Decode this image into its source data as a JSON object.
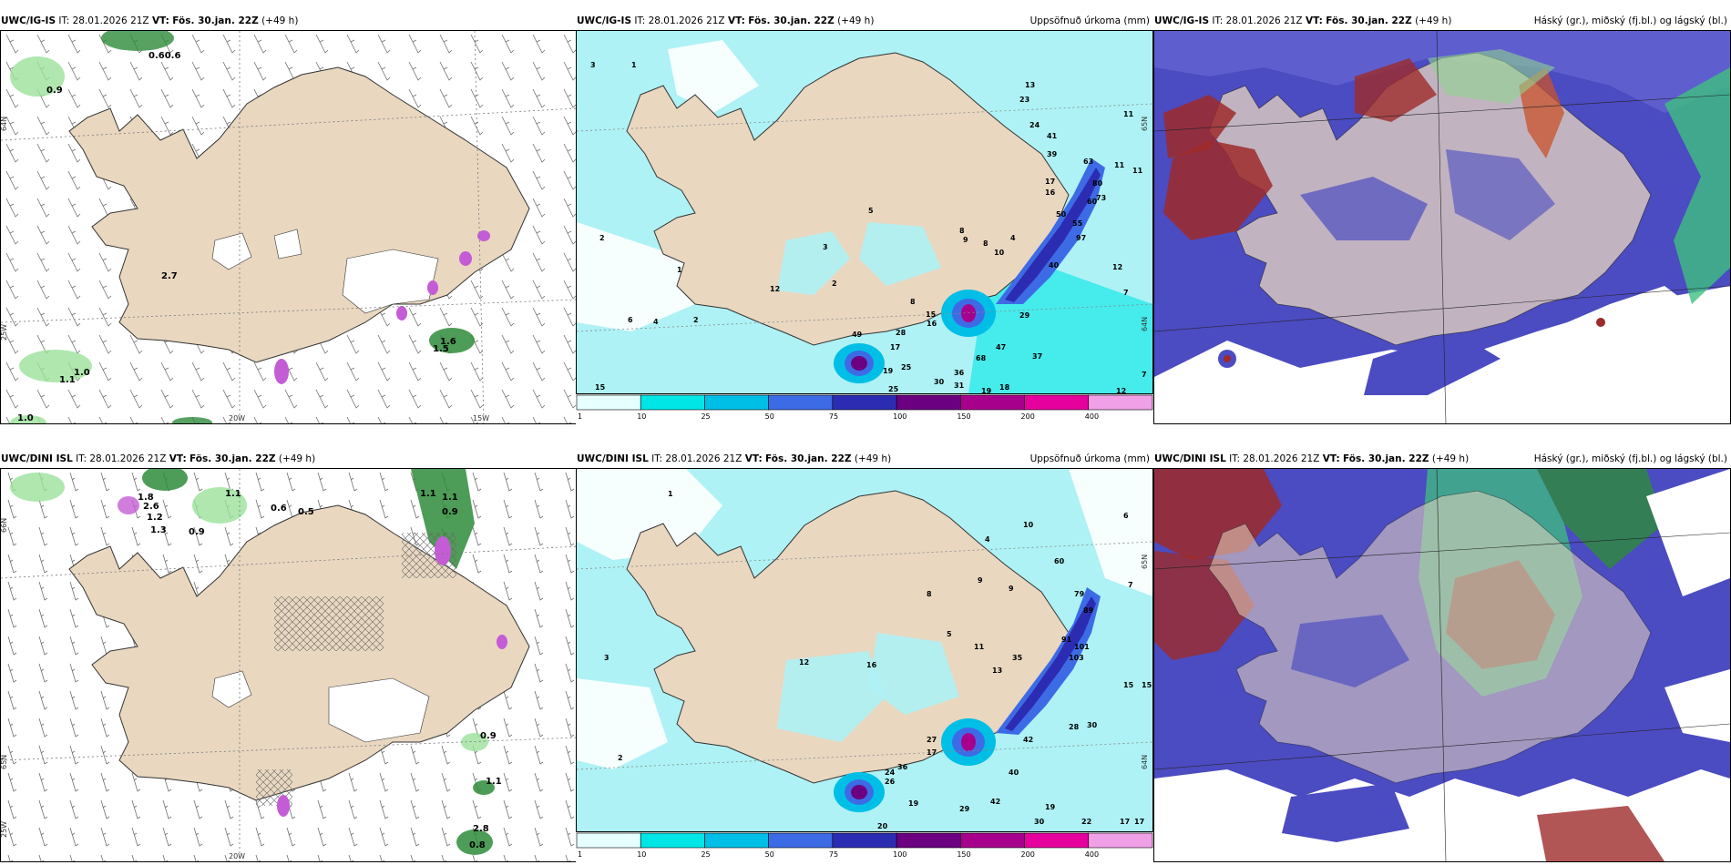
{
  "panels": [
    {
      "id": "igis-wind",
      "model": "UWC/IG-IS",
      "it_label": "IT:",
      "it_value": "28.01.2026 21Z",
      "vt_label": "VT:",
      "vt_value": "Fös. 30.jan. 22Z",
      "lead": "(+49 h)",
      "right_title": "",
      "grid_labels": [
        "20W",
        "15W",
        "25W",
        "65N",
        "64N",
        "66N"
      ],
      "values": [
        "0.60.6",
        "0.9",
        "2.7",
        "1.0",
        "1.1",
        "1.0",
        "1.6",
        "1.5"
      ]
    },
    {
      "id": "igis-precip",
      "model": "UWC/IG-IS",
      "it_label": "IT:",
      "it_value": "28.01.2026 21Z",
      "vt_label": "VT:",
      "vt_value": "Fös. 30.jan. 22Z",
      "lead": "(+49 h)",
      "right_title": "Uppsöfnuð úrkoma (mm)",
      "grid_labels": [
        "65N",
        "64N"
      ],
      "values": [
        "1",
        "3",
        "2",
        "1",
        "12",
        "2",
        "49",
        "28",
        "17",
        "19",
        "25",
        "25",
        "15",
        "8",
        "16",
        "29",
        "47",
        "68",
        "37",
        "36",
        "30",
        "31",
        "18",
        "19",
        "15",
        "12",
        "7",
        "7",
        "12",
        "11",
        "11",
        "40",
        "50",
        "55",
        "60",
        "63",
        "80",
        "73",
        "97",
        "4",
        "13",
        "23",
        "24",
        "41",
        "39",
        "17",
        "16",
        "8",
        "9",
        "10",
        "8",
        "5",
        "3",
        "6",
        "4",
        "2",
        "11"
      ]
    },
    {
      "id": "igis-cloud",
      "model": "UWC/IG-IS",
      "it_label": "IT:",
      "it_value": "28.01.2026 21Z",
      "vt_label": "VT:",
      "vt_value": "Fös. 30.jan. 22Z",
      "lead": "(+49 h)",
      "right_title": "Háský (gr.), miðský (fj.bl.) og lágský (bl.)",
      "grid_labels": [],
      "values": []
    },
    {
      "id": "dini-wind",
      "model": "UWC/DINI ISL",
      "it_label": "IT:",
      "it_value": "28.01.2026 21Z",
      "vt_label": "VT:",
      "vt_value": "Fös. 30.jan. 22Z",
      "lead": "(+49 h)",
      "right_title": "",
      "grid_labels": [
        "20W",
        "25W",
        "65N",
        "64N",
        "66N"
      ],
      "values": [
        "0.6",
        "0.5",
        "0.9",
        "1.1",
        "1.8",
        "2.6",
        "1.2",
        "1.3",
        "0.9",
        "1.1",
        "1.1",
        "0.9",
        "1.1",
        "2.8",
        "0.8"
      ]
    },
    {
      "id": "dini-precip",
      "model": "UWC/DINI ISL",
      "it_label": "IT:",
      "it_value": "28.01.2026 21Z",
      "vt_label": "VT:",
      "vt_value": "Fös. 30.jan. 22Z",
      "lead": "(+49 h)",
      "right_title": "Uppsöfnuð úrkoma (mm)",
      "grid_labels": [
        "65N",
        "64N"
      ],
      "values": [
        "1",
        "3",
        "2",
        "16",
        "12",
        "27",
        "17",
        "24",
        "36",
        "26",
        "42",
        "40",
        "42",
        "19",
        "29",
        "30",
        "22",
        "17",
        "17",
        "60",
        "79",
        "89",
        "91",
        "101",
        "103",
        "35",
        "13",
        "15",
        "15",
        "28",
        "30",
        "7",
        "6",
        "9",
        "10",
        "11",
        "9",
        "4",
        "5",
        "8",
        "20",
        "19"
      ]
    },
    {
      "id": "dini-cloud",
      "model": "UWC/DINI ISL",
      "it_label": "IT:",
      "it_value": "28.01.2026 21Z",
      "vt_label": "VT:",
      "vt_value": "Fös. 30.jan. 22Z",
      "lead": "(+49 h)",
      "right_title": "Háský (gr.), miðský (fj.bl.) og lágský (bl.)",
      "grid_labels": [],
      "values": []
    }
  ],
  "colorbar": {
    "labels": [
      "1",
      "10",
      "25",
      "50",
      "75",
      "100",
      "150",
      "200",
      "400"
    ],
    "colors": [
      "#e6ffff",
      "#00e6e6",
      "#00bfe6",
      "#3d6be6",
      "#2c2cb3",
      "#6b0080",
      "#a6008c",
      "#e6009e",
      "#f0a0e6"
    ]
  },
  "colors": {
    "land": "#e9d7c0",
    "sea_precip": "#aef2f5",
    "light_precip": "#ffffff",
    "glacier": "#ffffff",
    "wind_green": "#9be19b",
    "purple_blob": "#c45cd6",
    "cloud_blue": "#4b4bc2",
    "cloud_red": "#9e2a2a",
    "cloud_green": "#3fbf7f"
  }
}
